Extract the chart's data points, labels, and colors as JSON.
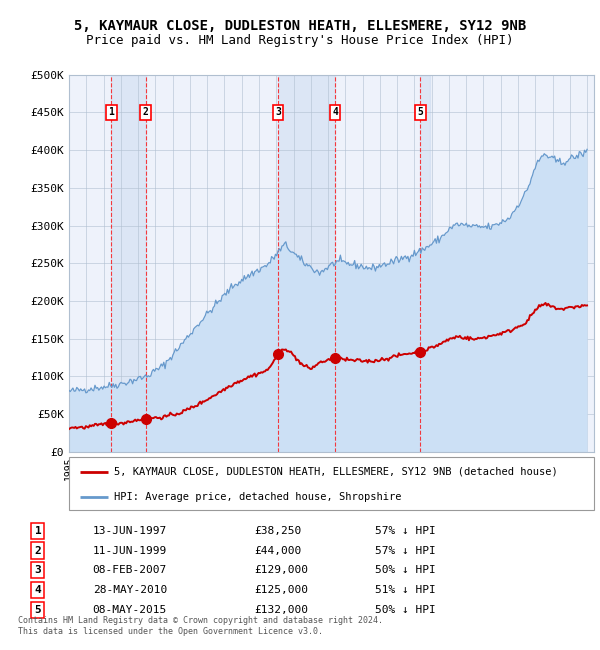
{
  "title1": "5, KAYMAUR CLOSE, DUDLESTON HEATH, ELLESMERE, SY12 9NB",
  "title2": "Price paid vs. HM Land Registry's House Price Index (HPI)",
  "ylim": [
    0,
    500000
  ],
  "yticks": [
    0,
    50000,
    100000,
    150000,
    200000,
    250000,
    300000,
    350000,
    400000,
    450000,
    500000
  ],
  "ytick_labels": [
    "£0",
    "£50K",
    "£100K",
    "£150K",
    "£200K",
    "£250K",
    "£300K",
    "£350K",
    "£400K",
    "£450K",
    "£500K"
  ],
  "sale_dates_decimal": [
    1997.44,
    1999.44,
    2007.1,
    2010.41,
    2015.35
  ],
  "sale_prices": [
    38250,
    44000,
    129000,
    125000,
    132000
  ],
  "sale_labels": [
    "1",
    "2",
    "3",
    "4",
    "5"
  ],
  "sale_dates_str": [
    "13-JUN-1997",
    "11-JUN-1999",
    "08-FEB-2007",
    "28-MAY-2010",
    "08-MAY-2015"
  ],
  "sale_pct": [
    "57% ↓ HPI",
    "57% ↓ HPI",
    "50% ↓ HPI",
    "51% ↓ HPI",
    "50% ↓ HPI"
  ],
  "sale_prices_str": [
    "£38,250",
    "£44,000",
    "£129,000",
    "£125,000",
    "£132,000"
  ],
  "red_line_color": "#cc0000",
  "blue_line_color": "#6699cc",
  "blue_fill_color": "#cce0f5",
  "background_color": "#eef2fb",
  "grid_color": "#b0bfd0",
  "legend_label_red": "5, KAYMAUR CLOSE, DUDLESTON HEATH, ELLESMERE, SY12 9NB (detached house)",
  "legend_label_blue": "HPI: Average price, detached house, Shropshire",
  "footnote": "Contains HM Land Registry data © Crown copyright and database right 2024.\nThis data is licensed under the Open Government Licence v3.0."
}
